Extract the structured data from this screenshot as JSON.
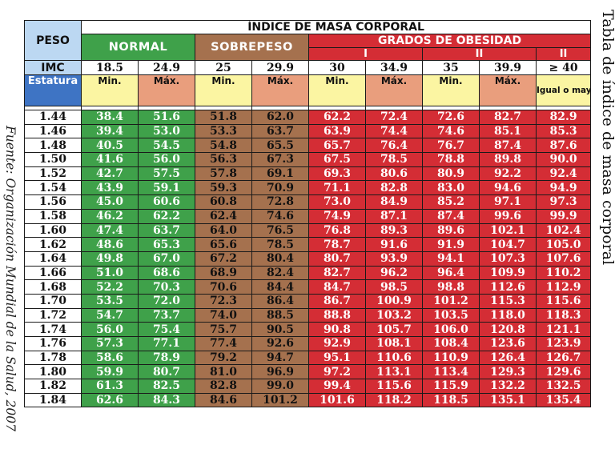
{
  "side_title": "Tabla de índice de masa corporal",
  "source": "Fuente: Organización Mundial de la Salud, 2007",
  "header": {
    "title": "ÍNDICE DE MASA CORPORAL",
    "peso": "PESO",
    "normal": "NORMAL",
    "sobrepeso": "SOBREPESO",
    "obesidad": "GRADOS DE OBESIDAD",
    "grade_i": "I",
    "grade_ii": "II",
    "grade_iii": "II",
    "imc_label": "IMC",
    "imc_values": [
      "18.5",
      "24.9",
      "25",
      "29.9",
      "30",
      "34.9",
      "35",
      "39.9",
      "≥ 40"
    ],
    "estatura": "Estatura",
    "sub_labels": [
      "Min.",
      "Máx.",
      "Min.",
      "Máx.",
      "Min.",
      "Máx.",
      "Min.",
      "Máx.",
      "Igual o mayor de:"
    ]
  },
  "rows": [
    [
      "1.44",
      "38.4",
      "51.6",
      "51.8",
      "62.0",
      "62.2",
      "72.4",
      "72.6",
      "82.7",
      "82.9"
    ],
    [
      "1.46",
      "39.4",
      "53.0",
      "53.3",
      "63.7",
      "63.9",
      "74.4",
      "74.6",
      "85.1",
      "85.3"
    ],
    [
      "1.48",
      "40.5",
      "54.5",
      "54.8",
      "65.5",
      "65.7",
      "76.4",
      "76.7",
      "87.4",
      "87.6"
    ],
    [
      "1.50",
      "41.6",
      "56.0",
      "56.3",
      "67.3",
      "67.5",
      "78.5",
      "78.8",
      "89.8",
      "90.0"
    ],
    [
      "1.52",
      "42.7",
      "57.5",
      "57.8",
      "69.1",
      "69.3",
      "80.6",
      "80.9",
      "92.2",
      "92.4"
    ],
    [
      "1.54",
      "43.9",
      "59.1",
      "59.3",
      "70.9",
      "71.1",
      "82.8",
      "83.0",
      "94.6",
      "94.9"
    ],
    [
      "1.56",
      "45.0",
      "60.6",
      "60.8",
      "72.8",
      "73.0",
      "84.9",
      "85.2",
      "97.1",
      "97.3"
    ],
    [
      "1.58",
      "46.2",
      "62.2",
      "62.4",
      "74.6",
      "74.9",
      "87.1",
      "87.4",
      "99.6",
      "99.9"
    ],
    [
      "1.60",
      "47.4",
      "63.7",
      "64.0",
      "76.5",
      "76.8",
      "89.3",
      "89.6",
      "102.1",
      "102.4"
    ],
    [
      "1.62",
      "48.6",
      "65.3",
      "65.6",
      "78.5",
      "78.7",
      "91.6",
      "91.9",
      "104.7",
      "105.0"
    ],
    [
      "1.64",
      "49.8",
      "67.0",
      "67.2",
      "80.4",
      "80.7",
      "93.9",
      "94.1",
      "107.3",
      "107.6"
    ],
    [
      "1.66",
      "51.0",
      "68.6",
      "68.9",
      "82.4",
      "82.7",
      "96.2",
      "96.4",
      "109.9",
      "110.2"
    ],
    [
      "1.68",
      "52.2",
      "70.3",
      "70.6",
      "84.4",
      "84.7",
      "98.5",
      "98.8",
      "112.6",
      "112.9"
    ],
    [
      "1.70",
      "53.5",
      "72.0",
      "72.3",
      "86.4",
      "86.7",
      "100.9",
      "101.2",
      "115.3",
      "115.6"
    ],
    [
      "1.72",
      "54.7",
      "73.7",
      "74.0",
      "88.5",
      "88.8",
      "103.2",
      "103.5",
      "118.0",
      "118.3"
    ],
    [
      "1.74",
      "56.0",
      "75.4",
      "75.7",
      "90.5",
      "90.8",
      "105.7",
      "106.0",
      "120.8",
      "121.1"
    ],
    [
      "1.76",
      "57.3",
      "77.1",
      "77.4",
      "92.6",
      "92.9",
      "108.1",
      "108.4",
      "123.6",
      "123.9"
    ],
    [
      "1.78",
      "58.6",
      "78.9",
      "79.2",
      "94.7",
      "95.1",
      "110.6",
      "110.9",
      "126.4",
      "126.7"
    ],
    [
      "1.80",
      "59.9",
      "80.7",
      "81.0",
      "96.9",
      "97.2",
      "113.1",
      "113.4",
      "129.3",
      "129.6"
    ],
    [
      "1.82",
      "61.3",
      "82.5",
      "82.8",
      "99.0",
      "99.4",
      "115.6",
      "115.9",
      "132.2",
      "132.5"
    ],
    [
      "1.84",
      "62.6",
      "84.3",
      "84.6",
      "101.2",
      "101.6",
      "118.2",
      "118.5",
      "135.1",
      "135.4"
    ]
  ]
}
